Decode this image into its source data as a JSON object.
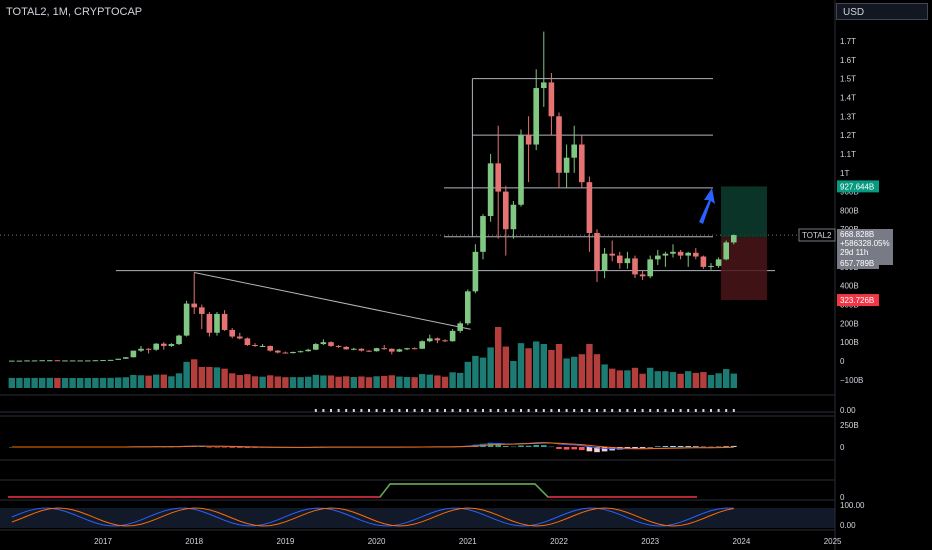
{
  "header": {
    "title": "TOTAL2, 1M, CRYPTOCAP",
    "currency": "USD"
  },
  "chart_data": {
    "type": "candlestick",
    "symbol": "TOTAL2",
    "interval": "1M",
    "y_unit": "USD",
    "y_ticks": [
      "1.7T",
      "1.6T",
      "1.5T",
      "1.4T",
      "1.3T",
      "1.2T",
      "1.1T",
      "1T",
      "900B",
      "800B",
      "700B",
      "600B",
      "500B",
      "400B",
      "300B",
      "200B",
      "100B",
      "0",
      "−100B"
    ],
    "x_ticks": [
      "2017",
      "2018",
      "2019",
      "2020",
      "2021",
      "2022",
      "2023",
      "2024",
      "2025"
    ],
    "candles": [
      {
        "d": "2016-01",
        "o": 1,
        "h": 2,
        "l": 1,
        "c": 2
      },
      {
        "d": "2016-02",
        "o": 2,
        "h": 2,
        "l": 1,
        "c": 2
      },
      {
        "d": "2016-03",
        "o": 2,
        "h": 3,
        "l": 2,
        "c": 3
      },
      {
        "d": "2016-04",
        "o": 3,
        "h": 3,
        "l": 2,
        "c": 3
      },
      {
        "d": "2016-05",
        "o": 3,
        "h": 4,
        "l": 3,
        "c": 4
      },
      {
        "d": "2016-06",
        "o": 4,
        "h": 5,
        "l": 3,
        "c": 4
      },
      {
        "d": "2016-07",
        "o": 4,
        "h": 4,
        "l": 3,
        "c": 3
      },
      {
        "d": "2016-08",
        "o": 3,
        "h": 3,
        "l": 3,
        "c": 3
      },
      {
        "d": "2016-09",
        "o": 3,
        "h": 3,
        "l": 3,
        "c": 3
      },
      {
        "d": "2016-10",
        "o": 3,
        "h": 3,
        "l": 3,
        "c": 3
      },
      {
        "d": "2016-11",
        "o": 3,
        "h": 3,
        "l": 3,
        "c": 3
      },
      {
        "d": "2016-12",
        "o": 3,
        "h": 4,
        "l": 3,
        "c": 4
      },
      {
        "d": "2017-01",
        "o": 4,
        "h": 5,
        "l": 4,
        "c": 5
      },
      {
        "d": "2017-02",
        "o": 5,
        "h": 6,
        "l": 4,
        "c": 6
      },
      {
        "d": "2017-03",
        "o": 6,
        "h": 12,
        "l": 6,
        "c": 12
      },
      {
        "d": "2017-04",
        "o": 12,
        "h": 20,
        "l": 11,
        "c": 20
      },
      {
        "d": "2017-05",
        "o": 20,
        "h": 55,
        "l": 19,
        "c": 55
      },
      {
        "d": "2017-06",
        "o": 55,
        "h": 80,
        "l": 48,
        "c": 65
      },
      {
        "d": "2017-07",
        "o": 65,
        "h": 68,
        "l": 40,
        "c": 60
      },
      {
        "d": "2017-08",
        "o": 60,
        "h": 95,
        "l": 55,
        "c": 92
      },
      {
        "d": "2017-09",
        "o": 92,
        "h": 100,
        "l": 60,
        "c": 80
      },
      {
        "d": "2017-10",
        "o": 80,
        "h": 95,
        "l": 75,
        "c": 90
      },
      {
        "d": "2017-11",
        "o": 90,
        "h": 140,
        "l": 85,
        "c": 135
      },
      {
        "d": "2017-12",
        "o": 135,
        "h": 320,
        "l": 130,
        "c": 305
      },
      {
        "d": "2018-01",
        "o": 305,
        "h": 470,
        "l": 250,
        "c": 285
      },
      {
        "d": "2018-02",
        "o": 285,
        "h": 300,
        "l": 170,
        "c": 250
      },
      {
        "d": "2018-03",
        "o": 250,
        "h": 260,
        "l": 130,
        "c": 150
      },
      {
        "d": "2018-04",
        "o": 150,
        "h": 260,
        "l": 135,
        "c": 250
      },
      {
        "d": "2018-05",
        "o": 250,
        "h": 270,
        "l": 160,
        "c": 165
      },
      {
        "d": "2018-06",
        "o": 165,
        "h": 175,
        "l": 120,
        "c": 130
      },
      {
        "d": "2018-07",
        "o": 130,
        "h": 150,
        "l": 115,
        "c": 120
      },
      {
        "d": "2018-08",
        "o": 120,
        "h": 125,
        "l": 80,
        "c": 85
      },
      {
        "d": "2018-09",
        "o": 85,
        "h": 95,
        "l": 75,
        "c": 80
      },
      {
        "d": "2018-10",
        "o": 80,
        "h": 90,
        "l": 75,
        "c": 80
      },
      {
        "d": "2018-11",
        "o": 80,
        "h": 82,
        "l": 50,
        "c": 55
      },
      {
        "d": "2018-12",
        "o": 55,
        "h": 58,
        "l": 40,
        "c": 45
      },
      {
        "d": "2019-01",
        "o": 45,
        "h": 50,
        "l": 40,
        "c": 42
      },
      {
        "d": "2019-02",
        "o": 42,
        "h": 50,
        "l": 40,
        "c": 48
      },
      {
        "d": "2019-03",
        "o": 48,
        "h": 55,
        "l": 45,
        "c": 52
      },
      {
        "d": "2019-04",
        "o": 52,
        "h": 65,
        "l": 50,
        "c": 60
      },
      {
        "d": "2019-05",
        "o": 60,
        "h": 95,
        "l": 58,
        "c": 90
      },
      {
        "d": "2019-06",
        "o": 90,
        "h": 115,
        "l": 85,
        "c": 100
      },
      {
        "d": "2019-07",
        "o": 100,
        "h": 105,
        "l": 75,
        "c": 80
      },
      {
        "d": "2019-08",
        "o": 80,
        "h": 85,
        "l": 70,
        "c": 75
      },
      {
        "d": "2019-09",
        "o": 75,
        "h": 80,
        "l": 60,
        "c": 62
      },
      {
        "d": "2019-10",
        "o": 62,
        "h": 70,
        "l": 58,
        "c": 65
      },
      {
        "d": "2019-11",
        "o": 65,
        "h": 68,
        "l": 50,
        "c": 55
      },
      {
        "d": "2019-12",
        "o": 55,
        "h": 57,
        "l": 48,
        "c": 52
      },
      {
        "d": "2020-01",
        "o": 52,
        "h": 70,
        "l": 50,
        "c": 68
      },
      {
        "d": "2020-02",
        "o": 68,
        "h": 85,
        "l": 60,
        "c": 65
      },
      {
        "d": "2020-03",
        "o": 65,
        "h": 67,
        "l": 35,
        "c": 50
      },
      {
        "d": "2020-04",
        "o": 50,
        "h": 65,
        "l": 48,
        "c": 62
      },
      {
        "d": "2020-05",
        "o": 62,
        "h": 70,
        "l": 58,
        "c": 68
      },
      {
        "d": "2020-06",
        "o": 68,
        "h": 72,
        "l": 62,
        "c": 65
      },
      {
        "d": "2020-07",
        "o": 65,
        "h": 110,
        "l": 64,
        "c": 105
      },
      {
        "d": "2020-08",
        "o": 105,
        "h": 140,
        "l": 100,
        "c": 120
      },
      {
        "d": "2020-09",
        "o": 120,
        "h": 125,
        "l": 95,
        "c": 110
      },
      {
        "d": "2020-10",
        "o": 110,
        "h": 115,
        "l": 100,
        "c": 105
      },
      {
        "d": "2020-11",
        "o": 105,
        "h": 170,
        "l": 103,
        "c": 160
      },
      {
        "d": "2020-12",
        "o": 160,
        "h": 210,
        "l": 150,
        "c": 200
      },
      {
        "d": "2021-01",
        "o": 200,
        "h": 380,
        "l": 190,
        "c": 370
      },
      {
        "d": "2021-02",
        "o": 370,
        "h": 620,
        "l": 360,
        "c": 580
      },
      {
        "d": "2021-03",
        "o": 580,
        "h": 780,
        "l": 540,
        "c": 770
      },
      {
        "d": "2021-04",
        "o": 770,
        "h": 1100,
        "l": 740,
        "c": 1050
      },
      {
        "d": "2021-05",
        "o": 1050,
        "h": 1250,
        "l": 650,
        "c": 900
      },
      {
        "d": "2021-06",
        "o": 900,
        "h": 930,
        "l": 560,
        "c": 700
      },
      {
        "d": "2021-07",
        "o": 700,
        "h": 850,
        "l": 650,
        "c": 830
      },
      {
        "d": "2021-08",
        "o": 830,
        "h": 1230,
        "l": 820,
        "c": 1200
      },
      {
        "d": "2021-09",
        "o": 1200,
        "h": 1300,
        "l": 950,
        "c": 1150
      },
      {
        "d": "2021-10",
        "o": 1150,
        "h": 1550,
        "l": 1120,
        "c": 1450
      },
      {
        "d": "2021-11",
        "o": 1450,
        "h": 1750,
        "l": 1350,
        "c": 1480
      },
      {
        "d": "2021-12",
        "o": 1480,
        "h": 1530,
        "l": 1200,
        "c": 1300
      },
      {
        "d": "2022-01",
        "o": 1300,
        "h": 1320,
        "l": 920,
        "c": 1000
      },
      {
        "d": "2022-02",
        "o": 1000,
        "h": 1150,
        "l": 920,
        "c": 1080
      },
      {
        "d": "2022-03",
        "o": 1080,
        "h": 1250,
        "l": 1000,
        "c": 1150
      },
      {
        "d": "2022-04",
        "o": 1150,
        "h": 1200,
        "l": 920,
        "c": 950
      },
      {
        "d": "2022-05",
        "o": 950,
        "h": 980,
        "l": 580,
        "c": 680
      },
      {
        "d": "2022-06",
        "o": 680,
        "h": 700,
        "l": 420,
        "c": 480
      },
      {
        "d": "2022-07",
        "o": 480,
        "h": 600,
        "l": 440,
        "c": 570
      },
      {
        "d": "2022-08",
        "o": 570,
        "h": 640,
        "l": 530,
        "c": 560
      },
      {
        "d": "2022-09",
        "o": 560,
        "h": 580,
        "l": 490,
        "c": 520
      },
      {
        "d": "2022-10",
        "o": 520,
        "h": 580,
        "l": 490,
        "c": 545
      },
      {
        "d": "2022-11",
        "o": 545,
        "h": 560,
        "l": 440,
        "c": 460
      },
      {
        "d": "2022-12",
        "o": 460,
        "h": 480,
        "l": 430,
        "c": 450
      },
      {
        "d": "2023-01",
        "o": 450,
        "h": 560,
        "l": 440,
        "c": 540
      },
      {
        "d": "2023-02",
        "o": 540,
        "h": 590,
        "l": 510,
        "c": 560
      },
      {
        "d": "2023-03",
        "o": 560,
        "h": 580,
        "l": 500,
        "c": 570
      },
      {
        "d": "2023-04",
        "o": 570,
        "h": 620,
        "l": 550,
        "c": 580
      },
      {
        "d": "2023-05",
        "o": 580,
        "h": 590,
        "l": 540,
        "c": 560
      },
      {
        "d": "2023-06",
        "o": 560,
        "h": 580,
        "l": 500,
        "c": 575
      },
      {
        "d": "2023-07",
        "o": 575,
        "h": 600,
        "l": 540,
        "c": 555
      },
      {
        "d": "2023-08",
        "o": 555,
        "h": 560,
        "l": 490,
        "c": 500
      },
      {
        "d": "2023-09",
        "o": 500,
        "h": 520,
        "l": 485,
        "c": 505
      },
      {
        "d": "2023-10",
        "o": 505,
        "h": 550,
        "l": 495,
        "c": 540
      },
      {
        "d": "2023-11",
        "o": 540,
        "h": 640,
        "l": 535,
        "c": 630
      },
      {
        "d": "2023-12",
        "o": 630,
        "h": 672,
        "l": 620,
        "c": 669
      }
    ],
    "horizontal_levels": [
      1500,
      1200,
      920,
      660,
      480
    ],
    "fib_box_start": "2021-02",
    "trendline": {
      "from": {
        "d": "2018-01",
        "v": 470
      },
      "to": {
        "d": "2020-11",
        "v": 105
      }
    },
    "price_labels": [
      {
        "text": "927.644B",
        "value": 927.644,
        "color": "#089981"
      },
      {
        "text": "668.828B",
        "value": 668.828,
        "color": "#787b86"
      },
      {
        "text": "+586328.05%",
        "value": null,
        "color": "#787b86"
      },
      {
        "text": "29d 11h",
        "value": null,
        "color": "#787b86"
      },
      {
        "text": "657.789B",
        "value": 657.789,
        "color": "#787b86"
      },
      {
        "text": "323.726B",
        "value": 323.726,
        "color": "#f23645"
      }
    ],
    "symbol_tag": "TOTAL2",
    "position": {
      "entry": 657.789,
      "target": 927.644,
      "stop": 323.726
    },
    "volume_axis": [
      "200B",
      "100B",
      "0",
      "−100B"
    ],
    "panel_labels": {
      "p1": "0.00",
      "p2_top": "250B",
      "p2_mid": "0",
      "p4_mid": "0",
      "p5_top": "100.00",
      "p5_bottom": "0.00"
    },
    "colors": {
      "up": "#81c784",
      "down": "#e57373",
      "up_vol": "#26a69a",
      "down_vol": "#ef5350",
      "macd": "#2962ff",
      "signal": "#ff6d00",
      "arrow": "#2962ff",
      "line": "#b2b5be"
    }
  }
}
